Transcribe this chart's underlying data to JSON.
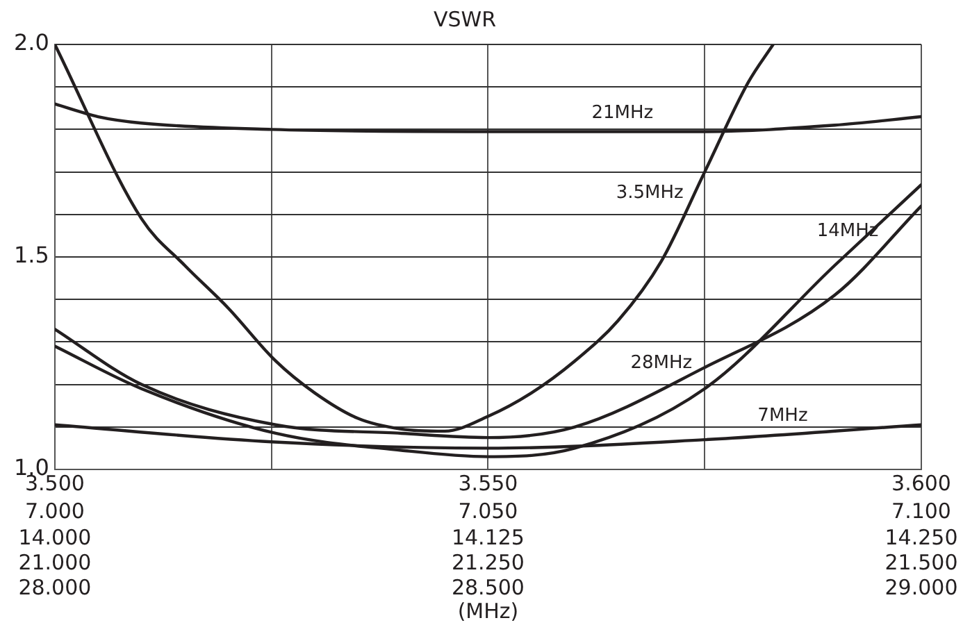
{
  "chart_data": {
    "type": "line",
    "title": "VSWR",
    "xlabel": "(MHz)",
    "xlim": [
      3.5,
      3.6
    ],
    "xticks": [
      {
        "value": 3.5,
        "label": "3.500"
      },
      {
        "value": 3.525,
        "label": null
      },
      {
        "value": 3.55,
        "label": "3.550"
      },
      {
        "value": 3.575,
        "label": null
      },
      {
        "value": 3.6,
        "label": "3.600"
      }
    ],
    "x2lim": [
      7.0,
      7.1
    ],
    "x2ticks": [
      {
        "value": 7.0,
        "label": "7.000"
      },
      {
        "value": 7.05,
        "label": "7.050"
      },
      {
        "value": 7.1,
        "label": "7.100"
      }
    ],
    "annotations": [
      "14.000",
      "14.125",
      "14.250",
      "21.000",
      "21.250",
      "21.500",
      "28.000",
      "28.500",
      "29.000"
    ],
    "ylim": [
      1,
      2
    ],
    "yticks": [
      {
        "value": 1,
        "label": "1.0"
      },
      {
        "value": 1.1,
        "label": null
      },
      {
        "value": 1.2,
        "label": null
      },
      {
        "value": 1.3,
        "label": null
      },
      {
        "value": 1.4,
        "label": null
      },
      {
        "value": 1.5,
        "label": "1.5"
      },
      {
        "value": 1.6,
        "label": null
      },
      {
        "value": 1.7,
        "label": null
      },
      {
        "value": 1.8,
        "label": null
      },
      {
        "value": 1.9,
        "label": null
      },
      {
        "value": 2,
        "label": "2.0"
      }
    ],
    "grid": true,
    "legend": false,
    "marker": "none",
    "line_style": "solid",
    "series": [
      {
        "name": "21MHz",
        "color": "#231f20",
        "x": [
          3.5,
          3.505,
          3.51,
          3.525,
          3.55,
          3.575,
          3.59,
          3.6
        ],
        "values": [
          1.86,
          1.83,
          1.815,
          1.8,
          1.795,
          1.795,
          1.81,
          1.83
        ]
      },
      {
        "name": "3.5MHz",
        "color": "#231f20",
        "x": [
          3.5,
          3.51,
          3.515,
          3.52,
          3.5255,
          3.53,
          3.535,
          3.54,
          3.545,
          3.55,
          3.555,
          3.56,
          3.565,
          3.57,
          3.575,
          3.58,
          3.5829
        ],
        "values": [
          2.0,
          1.59,
          1.48,
          1.38,
          1.255,
          1.18,
          1.12,
          1.095,
          1.09,
          1.125,
          1.18,
          1.255,
          1.35,
          1.49,
          1.7,
          1.91,
          2.0
        ]
      },
      {
        "name": "28MHz",
        "color": "#231f20",
        "x": [
          3.5,
          3.51,
          3.5255,
          3.54,
          3.55,
          3.56,
          3.575,
          3.59,
          3.6
        ],
        "values": [
          1.33,
          1.2,
          1.105,
          1.085,
          1.075,
          1.1,
          1.24,
          1.41,
          1.62
        ]
      },
      {
        "name": "14MHz",
        "color": "#231f20",
        "x": [
          3.5,
          3.51,
          3.5255,
          3.54,
          3.55,
          3.56,
          3.575,
          3.59,
          3.6
        ],
        "values": [
          1.29,
          1.19,
          1.085,
          1.045,
          1.03,
          1.05,
          1.19,
          1.48,
          1.67
        ]
      },
      {
        "name": "7MHz",
        "color": "#231f20",
        "x": [
          3.5,
          3.525,
          3.55,
          3.575,
          3.6
        ],
        "values": [
          1.105,
          1.065,
          1.05,
          1.07,
          1.105
        ]
      }
    ]
  }
}
